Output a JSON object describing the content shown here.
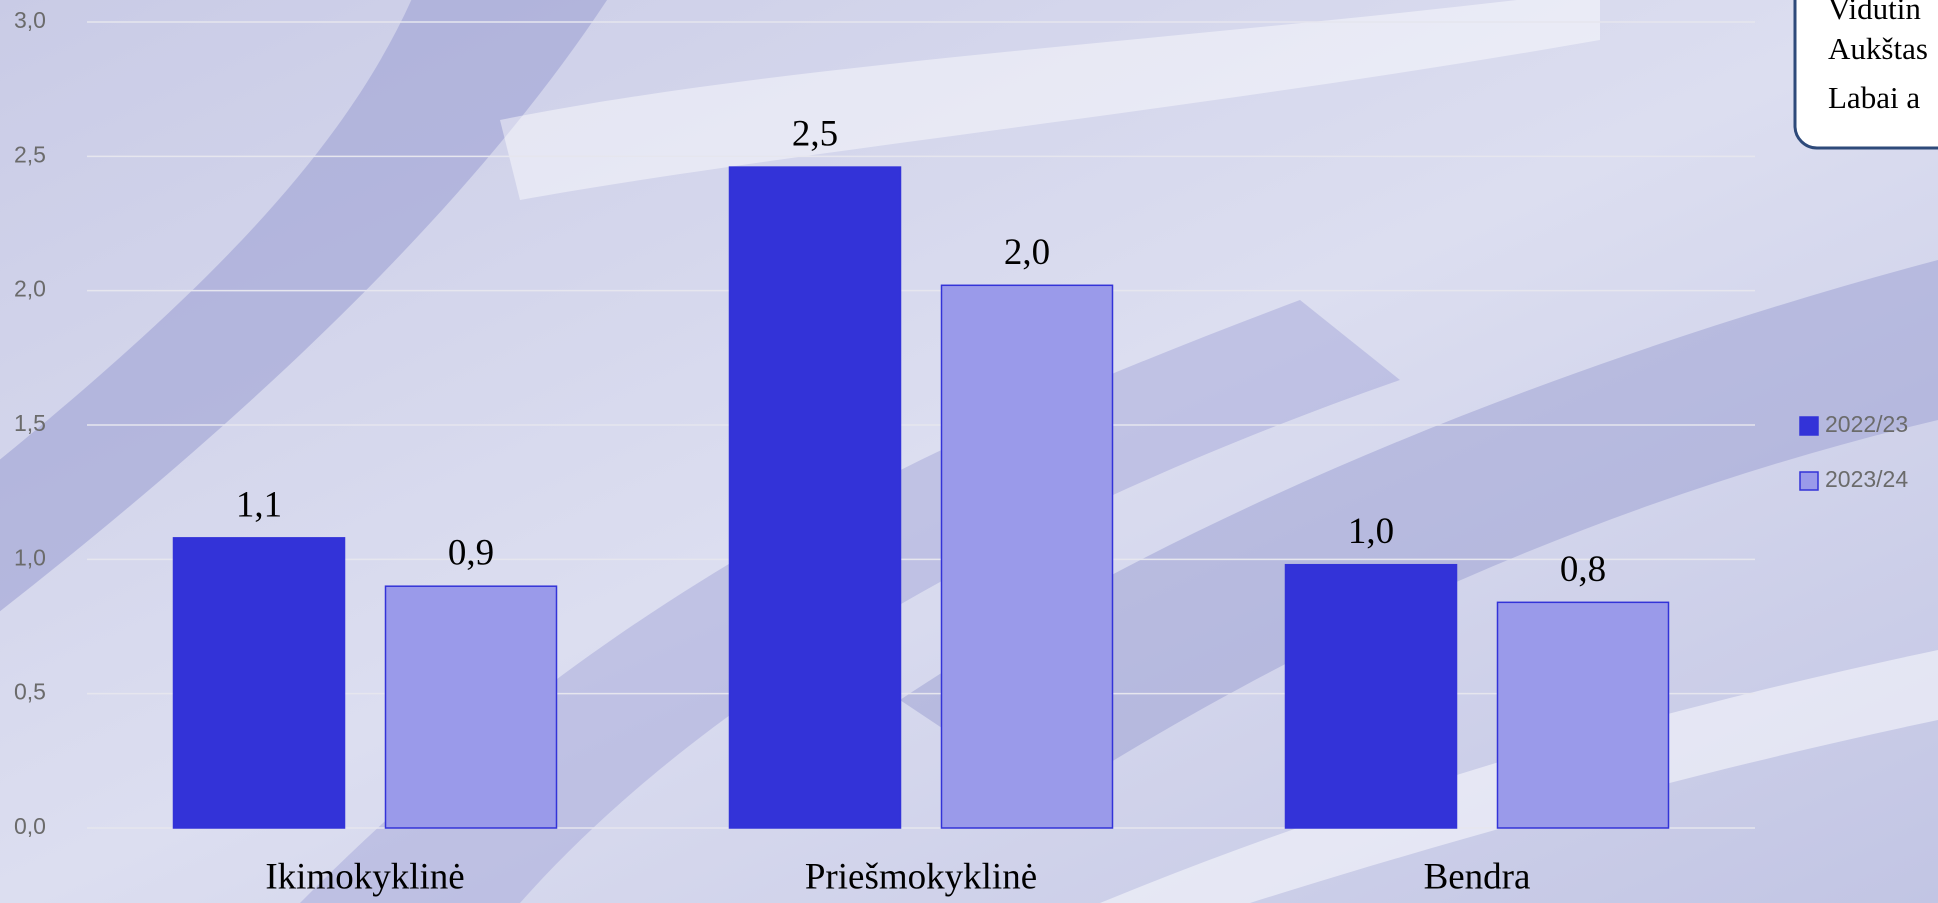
{
  "chart_data": {
    "type": "bar",
    "categories": [
      "Ikimokyklinė",
      "Priešmokyklinė",
      "Bendra"
    ],
    "series": [
      {
        "name": "2022/23",
        "color": "#3333d8",
        "values": [
          1.08,
          2.46,
          0.98
        ],
        "value_labels": [
          "1,1",
          "2,5",
          "1,0"
        ]
      },
      {
        "name": "2023/24",
        "color": "#9a9aea",
        "values": [
          0.9,
          2.02,
          0.84
        ],
        "value_labels": [
          "0,9",
          "2,0",
          "0,8"
        ]
      }
    ],
    "ylim": [
      0,
      3
    ],
    "yticks": [
      {
        "value": 0,
        "label": "0,0"
      },
      {
        "value": 0.5,
        "label": "0,5"
      },
      {
        "value": 1,
        "label": "1,0"
      },
      {
        "value": 1.5,
        "label": "1,5"
      },
      {
        "value": 2,
        "label": "2,0"
      },
      {
        "value": 2.5,
        "label": "2,5"
      },
      {
        "value": 3,
        "label": "3,0"
      }
    ],
    "grid": true,
    "annotations": [
      "Vidutin",
      "Aukštas",
      "Labai a"
    ]
  }
}
